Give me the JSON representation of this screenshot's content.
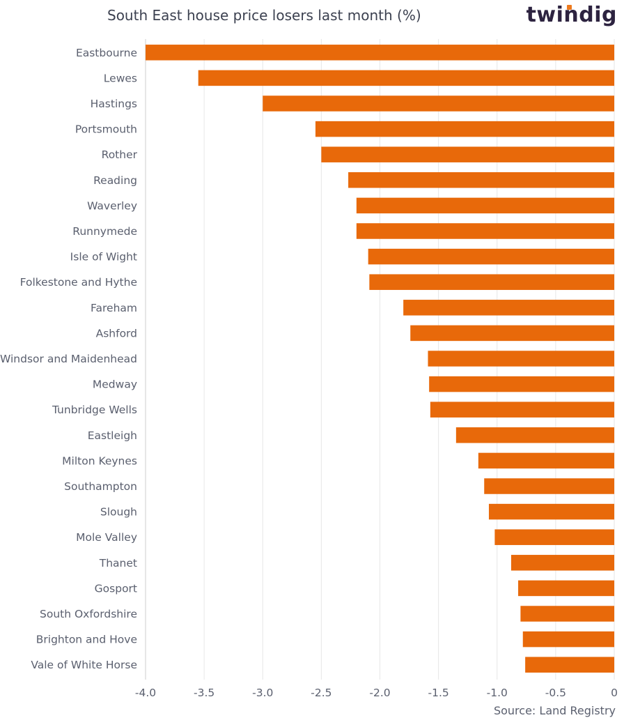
{
  "title": "South East house price losers last month (%)",
  "brand": "twindig",
  "source": "Source: Land Registry",
  "colors": {
    "bar": "#e8690a",
    "grid": "#e6e6e6",
    "axis": "#cccccc",
    "text": "#5a5f6e",
    "brand_dot": "#ee7a1d"
  },
  "chart_data": {
    "type": "bar",
    "orientation": "horizontal",
    "title": "South East house price losers last month (%)",
    "xlabel": "",
    "ylabel": "",
    "xlim": [
      -4.0,
      0
    ],
    "xticks": [
      -4.0,
      -3.5,
      -3.0,
      -2.5,
      -2.0,
      -1.5,
      -1.0,
      -0.5,
      0
    ],
    "xtick_labels": [
      "-4.0",
      "-3.5",
      "-3.0",
      "-2.5",
      "-2.0",
      "-1.5",
      "-1.0",
      "-0.5",
      "0"
    ],
    "grid": true,
    "categories": [
      "Eastbourne",
      "Lewes",
      "Hastings",
      "Portsmouth",
      "Rother",
      "Reading",
      "Waverley",
      "Runnymede",
      "Isle of Wight",
      "Folkestone and Hythe",
      "Fareham",
      "Ashford",
      "Windsor and Maidenhead",
      "Medway",
      "Tunbridge Wells",
      "Eastleigh",
      "Milton Keynes",
      "Southampton",
      "Slough",
      "Mole Valley",
      "Thanet",
      "Gosport",
      "South Oxfordshire",
      "Brighton and Hove",
      "Vale of White Horse"
    ],
    "values": [
      -4.0,
      -3.55,
      -3.0,
      -2.55,
      -2.5,
      -2.27,
      -2.2,
      -2.2,
      -2.1,
      -2.09,
      -1.8,
      -1.74,
      -1.59,
      -1.58,
      -1.57,
      -1.35,
      -1.16,
      -1.11,
      -1.07,
      -1.02,
      -0.88,
      -0.82,
      -0.8,
      -0.78,
      -0.76
    ]
  }
}
